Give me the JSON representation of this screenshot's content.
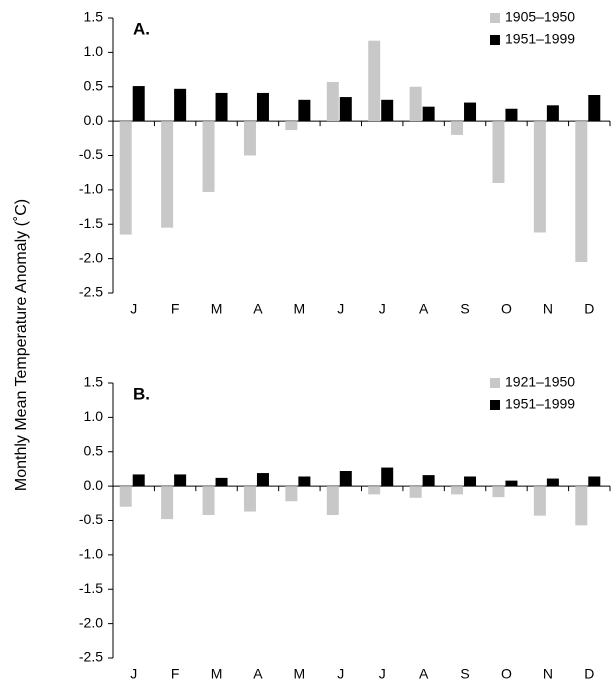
{
  "ylabel": "Monthly Mean Temperature Anomaly (˚C)",
  "chart_data": [
    {
      "type": "bar",
      "label": "A.",
      "categories": [
        "J",
        "F",
        "M",
        "A",
        "M",
        "J",
        "J",
        "A",
        "S",
        "O",
        "N",
        "D"
      ],
      "series": [
        {
          "name": "1905–1950",
          "color": "#c8c8c8",
          "values": [
            -1.65,
            -1.55,
            -1.03,
            -0.5,
            -0.13,
            0.57,
            1.17,
            0.5,
            -0.2,
            -0.9,
            -1.62,
            -2.05
          ]
        },
        {
          "name": "1951–1999",
          "color": "#000000",
          "values": [
            0.51,
            0.47,
            0.41,
            0.41,
            0.31,
            0.35,
            0.31,
            0.21,
            0.27,
            0.18,
            0.23,
            0.38
          ]
        }
      ],
      "ylim": [
        -2.5,
        1.5
      ],
      "yticks": [
        1.5,
        {
          "value": 1.0,
          "label": "1.0"
        },
        0.5,
        {
          "value": 0.0,
          "label": "0.0"
        },
        -0.5,
        {
          "value": -1.0,
          "label": "-1.0"
        },
        -1.5,
        {
          "value": -2.0,
          "label": "-2.0"
        },
        -2.5
      ],
      "grid": false,
      "legend": "upper right"
    },
    {
      "type": "bar",
      "label": "B.",
      "categories": [
        "J",
        "F",
        "M",
        "A",
        "M",
        "J",
        "J",
        "A",
        "S",
        "O",
        "N",
        "D"
      ],
      "series": [
        {
          "name": "1921–1950",
          "color": "#c8c8c8",
          "values": [
            -0.3,
            -0.48,
            -0.42,
            -0.37,
            -0.22,
            -0.42,
            -0.12,
            -0.17,
            -0.12,
            -0.16,
            -0.43,
            -0.57
          ]
        },
        {
          "name": "1951–1999",
          "color": "#000000",
          "values": [
            0.17,
            0.17,
            0.12,
            0.19,
            0.14,
            0.22,
            0.27,
            0.16,
            0.14,
            0.08,
            0.11,
            0.14
          ]
        }
      ],
      "ylim": [
        -2.5,
        1.5
      ],
      "yticks": [
        1.5,
        {
          "value": 1.0,
          "label": "1.0"
        },
        0.5,
        {
          "value": 0.0,
          "label": "0.0"
        },
        -0.5,
        {
          "value": -1.0,
          "label": "-1.0"
        },
        -1.5,
        {
          "value": -2.0,
          "label": "-2.0"
        },
        -2.5
      ],
      "grid": false,
      "legend": "upper right"
    }
  ]
}
